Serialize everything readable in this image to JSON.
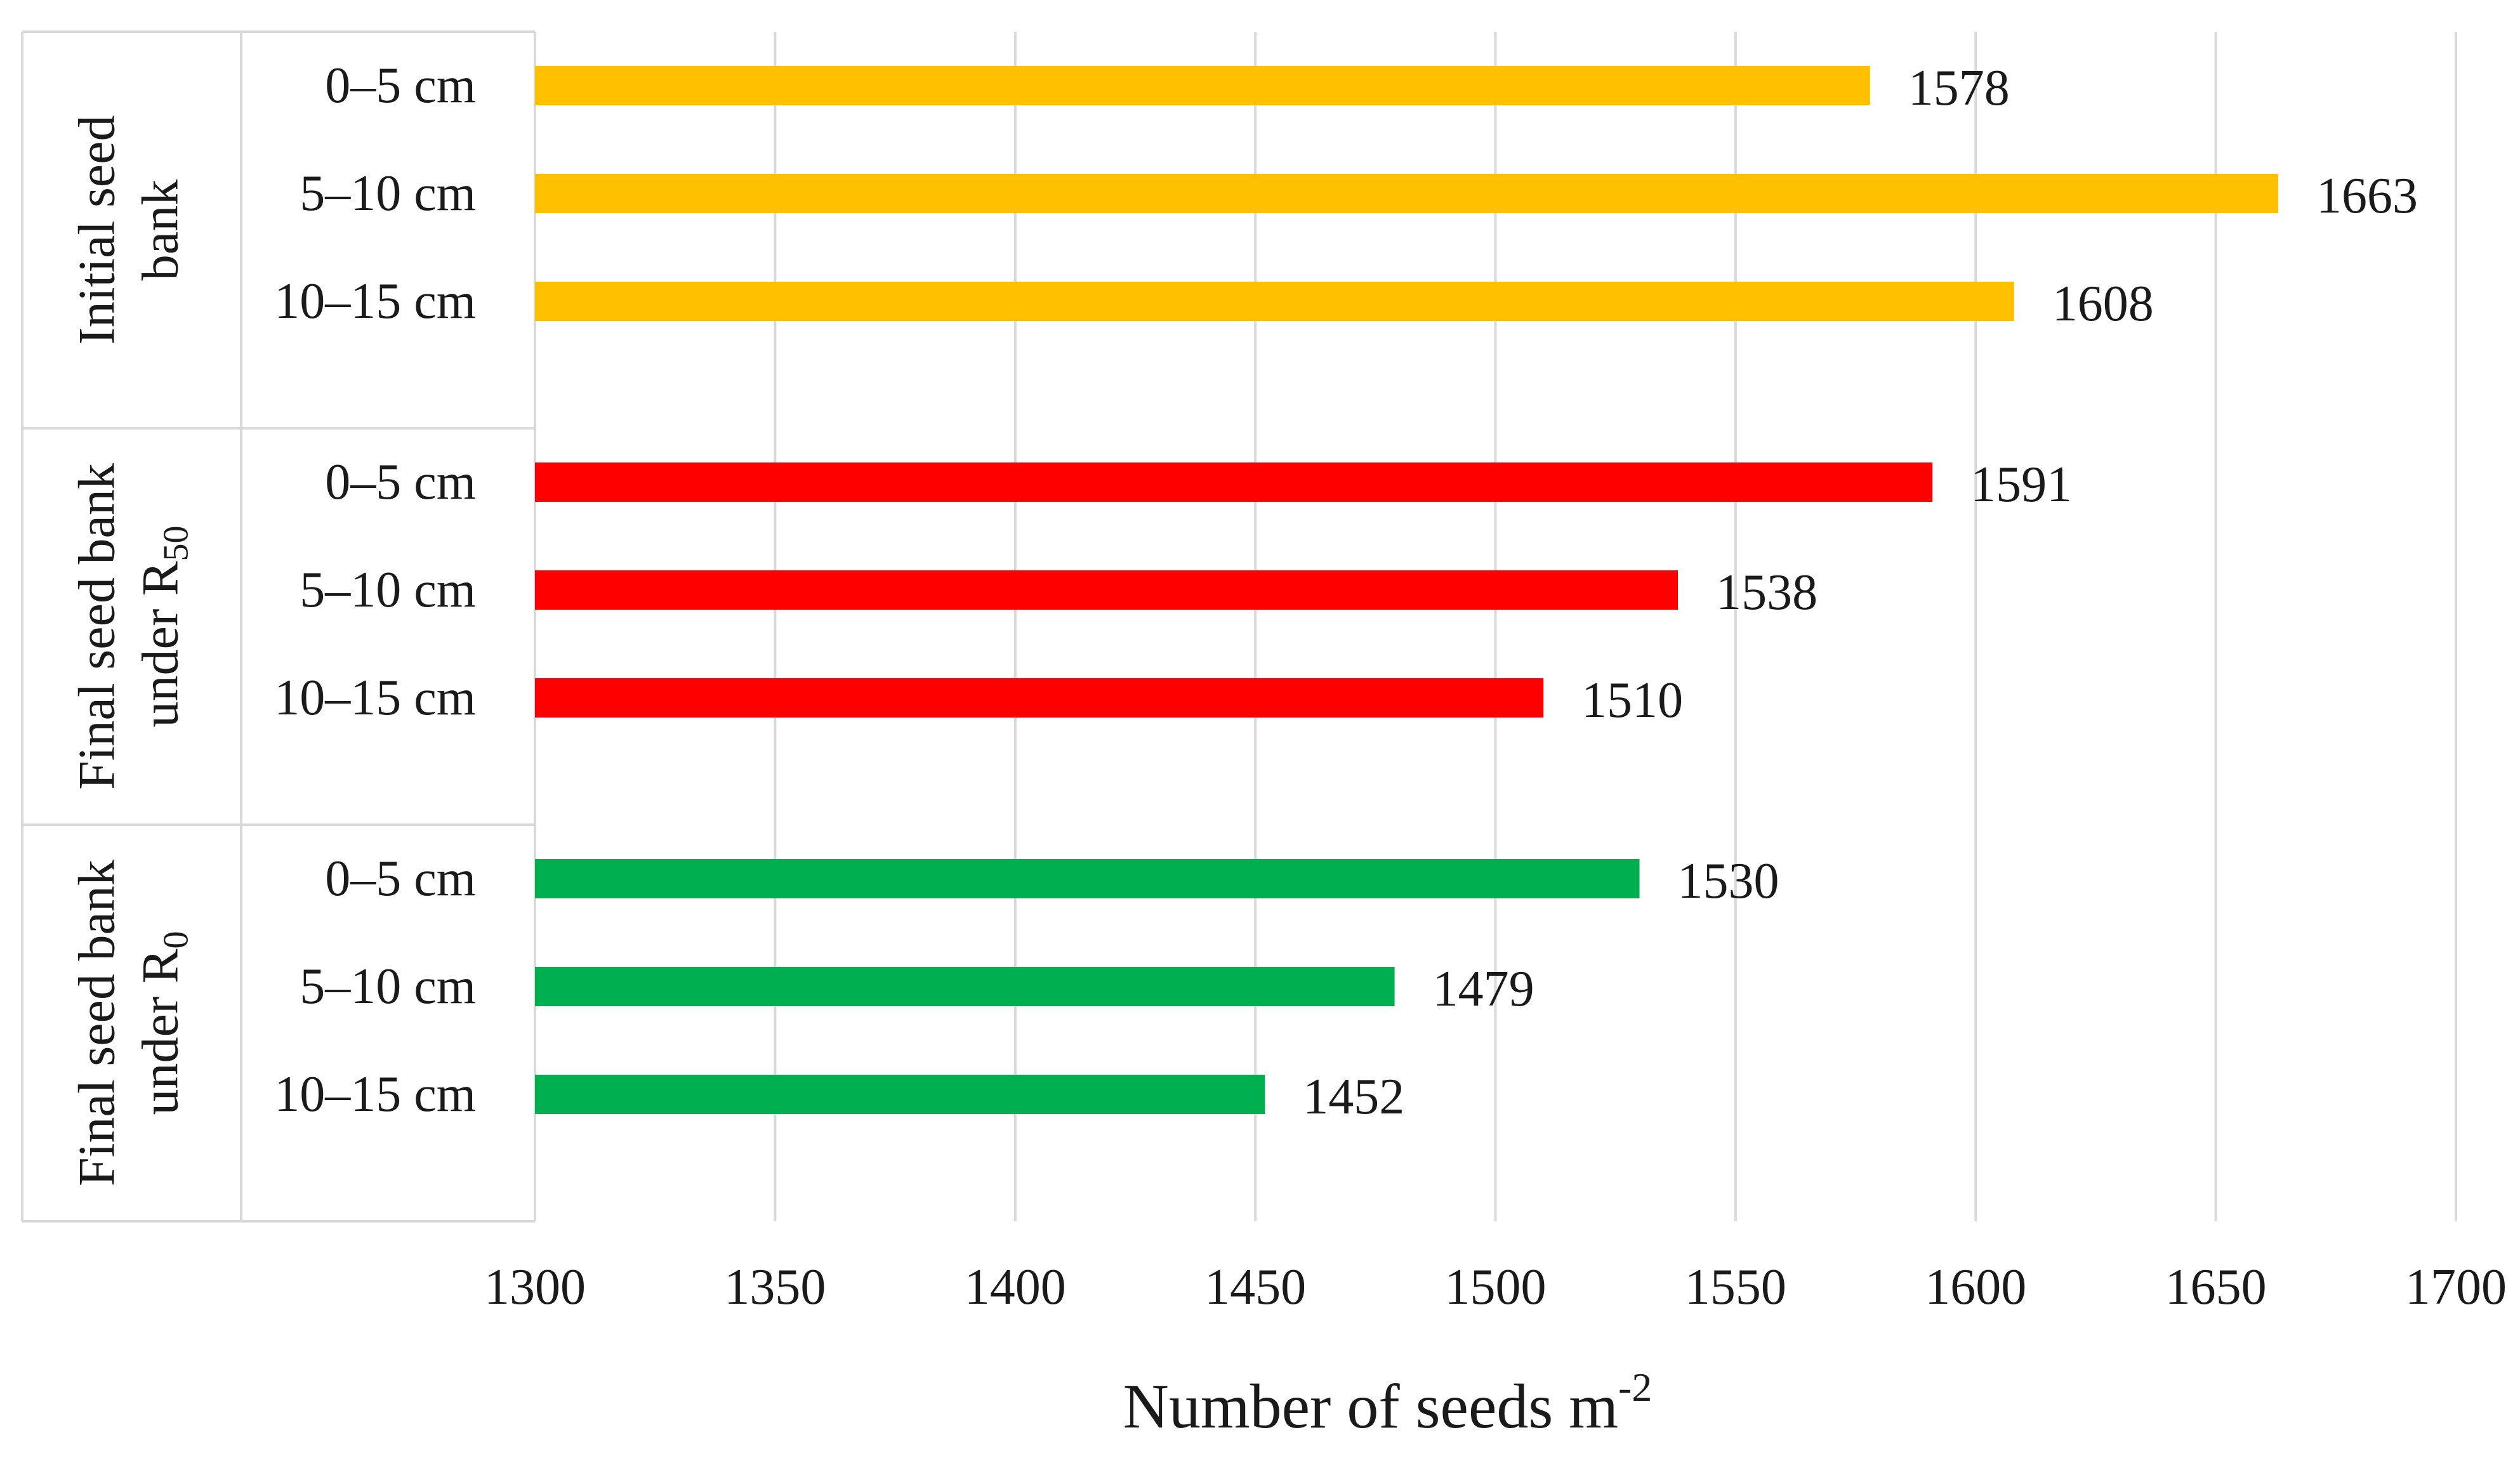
{
  "chart_data": {
    "type": "bar",
    "orientation": "horizontal",
    "title": "",
    "xlabel": "Number of seeds m",
    "xlabel_superscript": "-2",
    "ylabel": "",
    "xlim": [
      1300,
      1700
    ],
    "xticks": [
      1300,
      1350,
      1400,
      1450,
      1500,
      1550,
      1600,
      1650,
      1700
    ],
    "grid": true,
    "groups": [
      {
        "name": "Initial seed bank",
        "label_lines": [
          "Initial seed",
          "bank"
        ],
        "label_sub": "",
        "color": "#FFC000",
        "categories": [
          "0–5 cm",
          "5–10 cm",
          "10–15 cm"
        ],
        "values": [
          1578,
          1663,
          1608
        ]
      },
      {
        "name": "Final seed bank under R50",
        "label_lines": [
          "Final seed bank",
          "under R"
        ],
        "label_sub": "50",
        "color": "#FF0000",
        "categories": [
          "0–5 cm",
          "5–10 cm",
          "10–15 cm"
        ],
        "values": [
          1591,
          1538,
          1510
        ]
      },
      {
        "name": "Final seed bank under R0",
        "label_lines": [
          "Final seed bank",
          "under R"
        ],
        "label_sub": "0",
        "color": "#00B050",
        "categories": [
          "0–5 cm",
          "5–10 cm",
          "10–15 cm"
        ],
        "values": [
          1530,
          1479,
          1452
        ]
      }
    ]
  }
}
